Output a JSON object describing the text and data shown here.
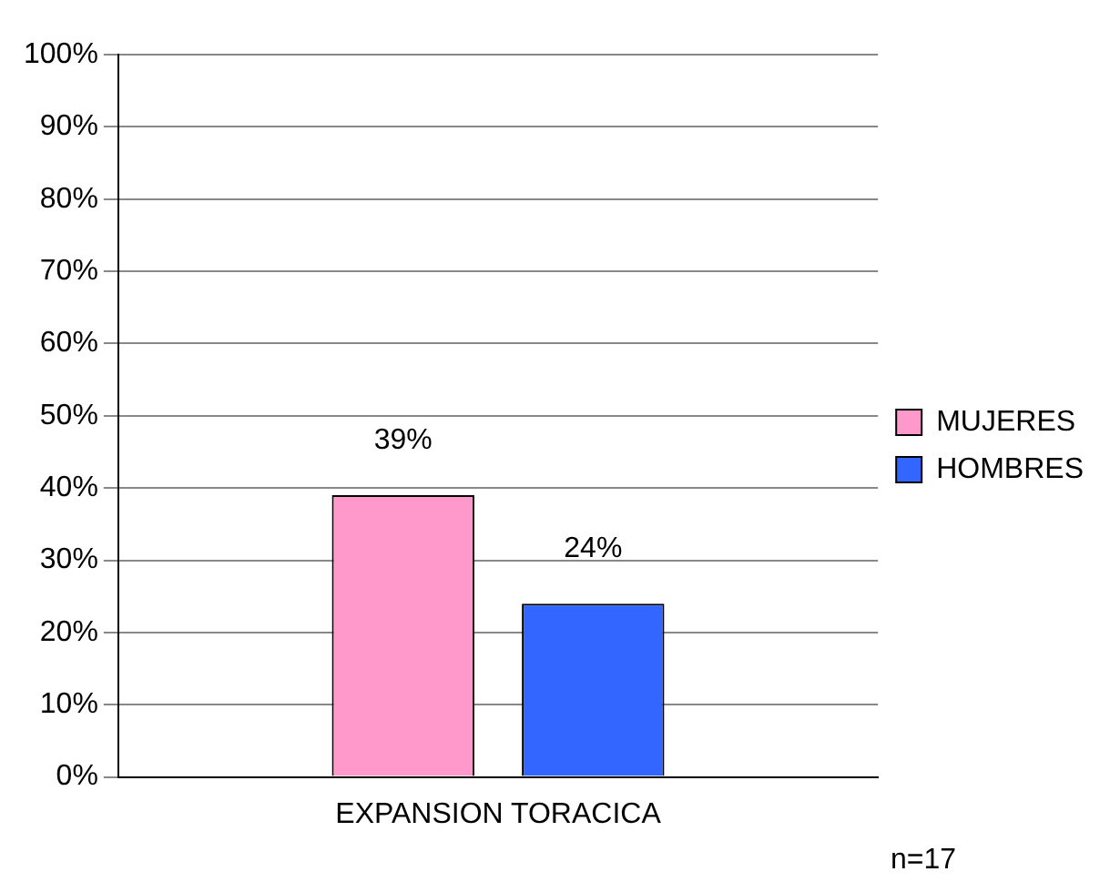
{
  "chart_data": {
    "type": "bar",
    "categories": [
      "EXPANSION TORACICA"
    ],
    "series": [
      {
        "name": "MUJERES",
        "color": "#ff99cc",
        "values": [
          39
        ],
        "value_labels": [
          "39%"
        ]
      },
      {
        "name": "HOMBRES",
        "color": "#3366ff",
        "values": [
          24
        ],
        "value_labels": [
          "24%"
        ]
      }
    ],
    "ylim": [
      0,
      100
    ],
    "yticks": [
      {
        "value": 0,
        "label": "0%"
      },
      {
        "value": 10,
        "label": "10%"
      },
      {
        "value": 20,
        "label": "20%"
      },
      {
        "value": 30,
        "label": "30%"
      },
      {
        "value": 40,
        "label": "40%"
      },
      {
        "value": 50,
        "label": "50%"
      },
      {
        "value": 60,
        "label": "60%"
      },
      {
        "value": 70,
        "label": "70%"
      },
      {
        "value": 80,
        "label": "80%"
      },
      {
        "value": 90,
        "label": "90%"
      },
      {
        "value": 100,
        "label": "100%"
      }
    ],
    "grid": "y",
    "legend": "right",
    "annotations": [
      "n=17"
    ]
  }
}
